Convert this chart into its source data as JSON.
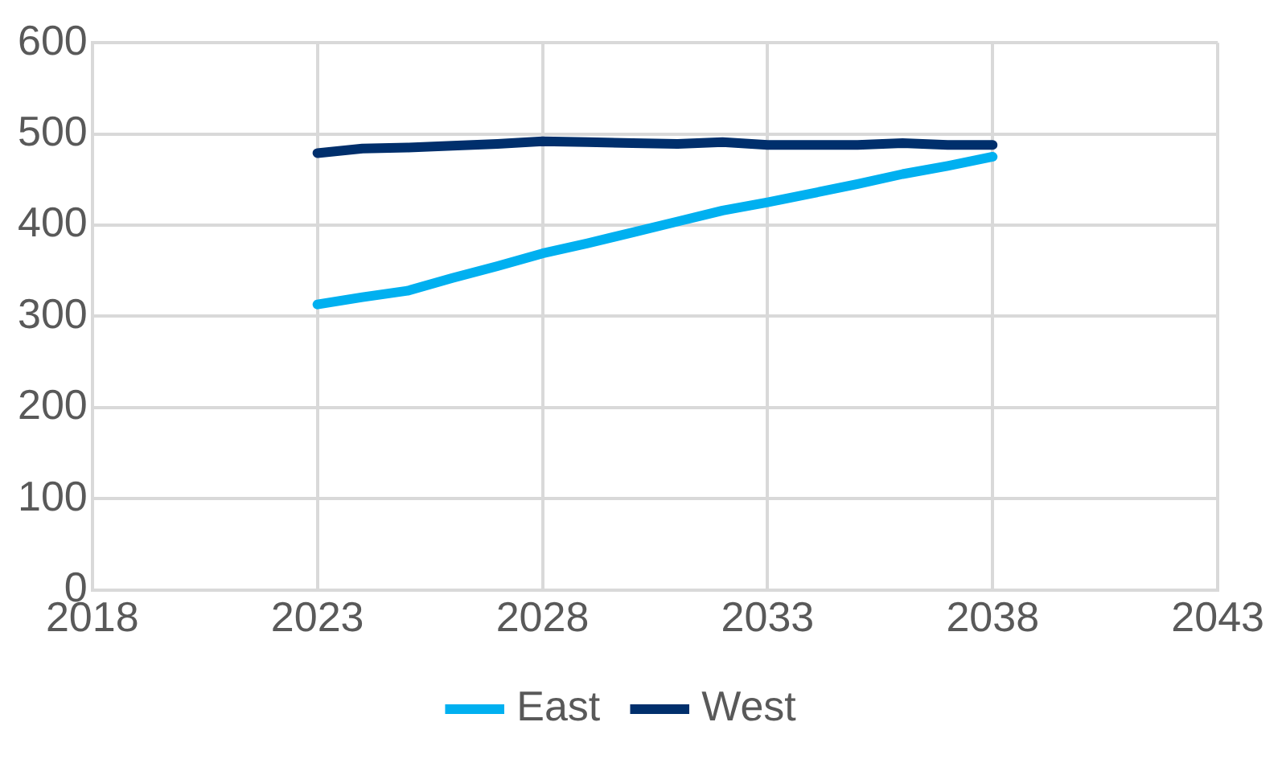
{
  "chart_data": {
    "type": "line",
    "x": [
      2023,
      2024,
      2025,
      2026,
      2027,
      2028,
      2029,
      2030,
      2031,
      2032,
      2033,
      2034,
      2035,
      2036,
      2037,
      2038
    ],
    "series": [
      {
        "name": "East",
        "color": "#00b0f0",
        "values": [
          313,
          321,
          328,
          342,
          355,
          369,
          380,
          392,
          404,
          416,
          425,
          435,
          445,
          456,
          465,
          475
        ]
      },
      {
        "name": "West",
        "color": "#002f6c",
        "values": [
          479,
          484,
          485,
          487,
          489,
          492,
          491,
          490,
          489,
          491,
          488,
          488,
          488,
          490,
          488,
          488
        ]
      }
    ],
    "xlim": [
      2018,
      2043
    ],
    "xticks": [
      2018,
      2023,
      2028,
      2033,
      2038,
      2043
    ],
    "ylim": [
      0,
      600
    ],
    "yticks": [
      0,
      100,
      200,
      300,
      400,
      500,
      600
    ],
    "grid": true,
    "legend": "bottom",
    "marker": "none",
    "line_style": "solid"
  }
}
